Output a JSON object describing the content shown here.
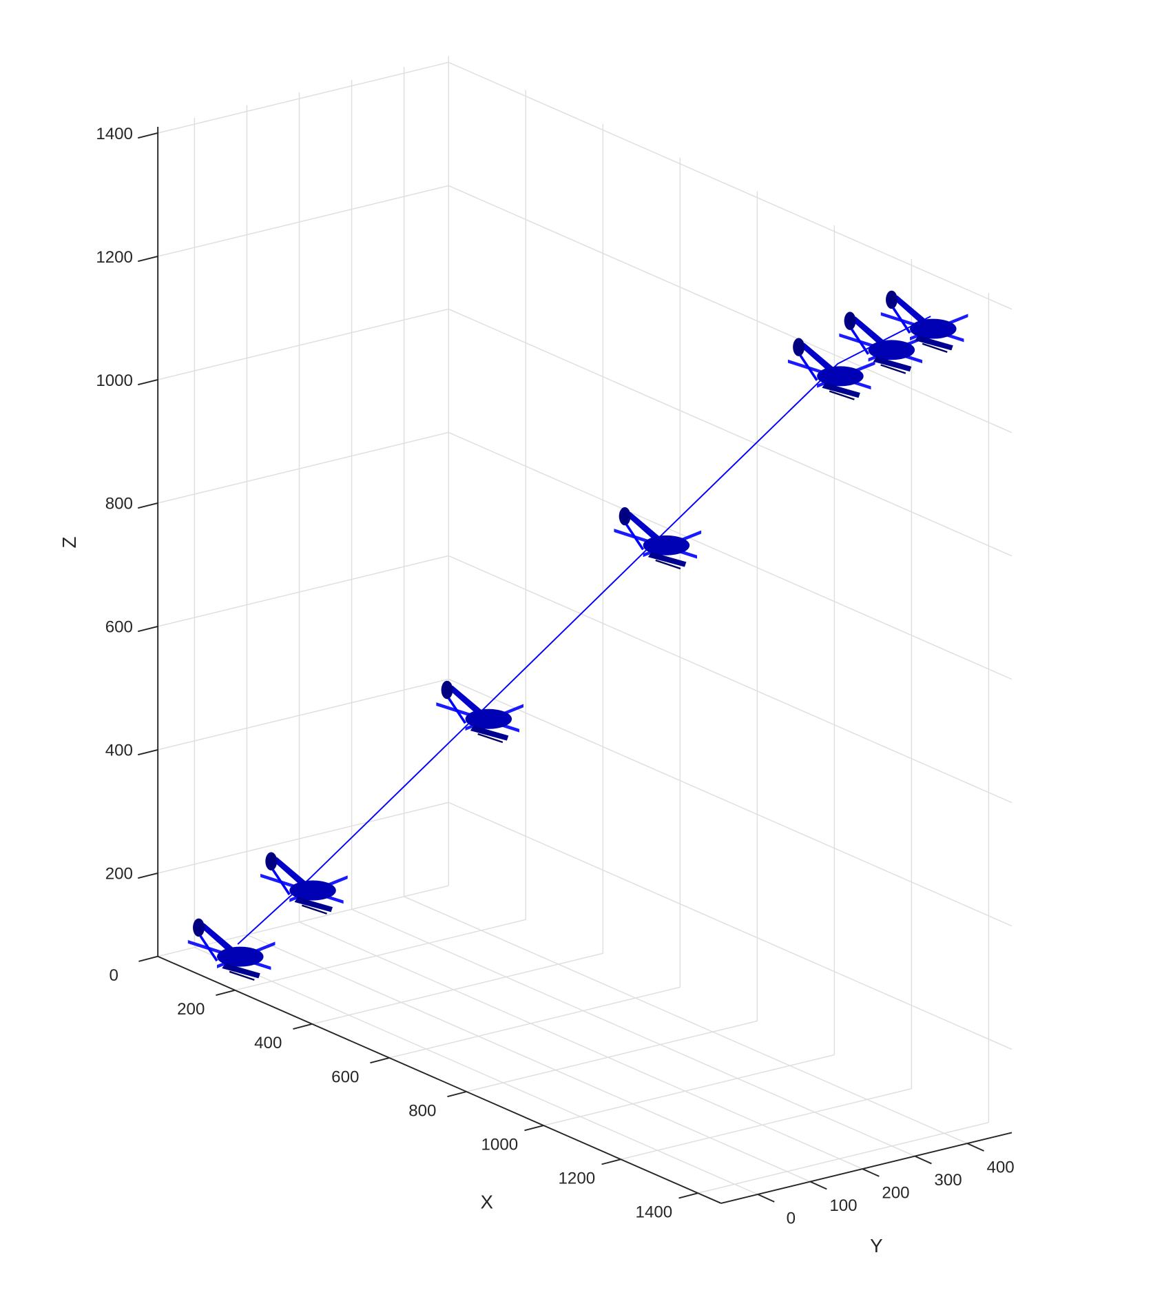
{
  "chart_data": {
    "type": "line3d",
    "x_label": "X",
    "y_label": "Y",
    "z_label": "Z",
    "series": [
      {
        "color": "#0000ff",
        "x": [
          180,
          300,
          620,
          945,
          1260,
          1325,
          1365
        ],
        "y": [
          -50,
          0,
          100,
          200,
          300,
          350,
          400
        ],
        "z": [
          130,
          260,
          605,
          955,
          1295,
          1345,
          1380
        ]
      }
    ],
    "xlim": [
      0,
      1460
    ],
    "ylim": [
      -70,
      485
    ],
    "zlim": [
      65,
      1410
    ],
    "xticks": [
      0,
      200,
      400,
      600,
      800,
      1000,
      1200,
      1400
    ],
    "yticks": [
      0,
      100,
      200,
      300,
      400
    ],
    "zticks": [
      200,
      400,
      600,
      800,
      1000,
      1200,
      1400
    ],
    "grid": true
  }
}
